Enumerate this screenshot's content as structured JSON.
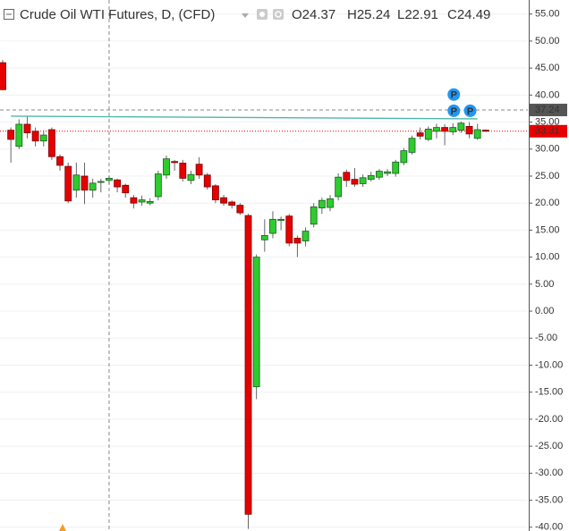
{
  "chart_data": {
    "type": "candlestick",
    "title": "Crude Oil WTI Futures, D, (CFD)",
    "ohlc_legend": [
      {
        "label": "O",
        "value": 24.37
      },
      {
        "label": "H",
        "value": 25.24
      },
      {
        "label": "L",
        "value": 22.91
      },
      {
        "label": "C",
        "value": 24.49
      }
    ],
    "series": {
      "up_color": "#2ecc2e",
      "down_color": "#e60000",
      "open": [
        46,
        33.5,
        30.5,
        34.6,
        33.3,
        31.5,
        33.6,
        28.6,
        26.8,
        22.4,
        25,
        22.4,
        23.9,
        24.2,
        24.3,
        23.3,
        21,
        20.2,
        20,
        21.2,
        25.2,
        27.7,
        27.4,
        24.2,
        27.2,
        25.2,
        23.2,
        21,
        20.2,
        19.6,
        17.7,
        -14,
        13.2,
        14.4,
        16.8,
        17.6,
        13.5,
        13,
        16.1,
        19.1,
        19.2,
        21.2,
        25.7,
        24.4,
        23.6,
        24.4,
        24.8,
        25.5,
        25.5,
        27.5,
        29.4,
        33,
        31.8,
        33.3,
        34,
        33.2,
        33.5,
        34.2,
        32,
        33.5
      ],
      "high": [
        46.5,
        34,
        35.5,
        36,
        34,
        33.5,
        34,
        29,
        27.5,
        27.5,
        27.5,
        24.5,
        24.5,
        25,
        24.5,
        23.6,
        21.5,
        21.4,
        20.9,
        26,
        28.8,
        28,
        28,
        26,
        28.5,
        25.6,
        23.5,
        21.5,
        20.5,
        20,
        18,
        10.5,
        17,
        18.5,
        17.5,
        18,
        14,
        15.5,
        20,
        21,
        21.5,
        25.5,
        26.2,
        26.5,
        25.3,
        25.8,
        26.3,
        26.3,
        28,
        30.2,
        32.5,
        34,
        34.2,
        34.7,
        34.6,
        34.8,
        35.1,
        35,
        34.7,
        33.6
      ],
      "low": [
        41,
        27.5,
        30,
        32,
        30.5,
        30.5,
        28,
        26,
        20,
        21,
        19.8,
        21,
        22,
        23.5,
        22,
        21,
        19,
        19.5,
        19.6,
        20.5,
        24.5,
        26,
        24,
        23.5,
        24.5,
        22.5,
        20,
        19.5,
        19,
        17.8,
        -40.3,
        -16.3,
        11,
        13.5,
        15,
        12,
        10,
        12,
        15.5,
        18,
        18.5,
        20.5,
        23,
        23,
        23,
        24,
        24.3,
        25,
        24.9,
        27,
        29,
        31.8,
        31.5,
        32,
        30.7,
        32.6,
        33,
        32,
        31.7,
        33.2
      ],
      "close": [
        41,
        31.8,
        34.6,
        33,
        31.5,
        32.6,
        28.6,
        27,
        20.4,
        25.2,
        22.4,
        23.7,
        24,
        24.6,
        23,
        21.9,
        20,
        20.6,
        20.3,
        25.4,
        28.2,
        27.5,
        24.6,
        25.3,
        25.2,
        23,
        20.6,
        20,
        19.6,
        18.2,
        -37.6,
        10,
        14,
        17,
        17,
        12.6,
        12.6,
        14.8,
        19.3,
        20.5,
        20.8,
        24.8,
        24.2,
        23.5,
        24.7,
        25.1,
        25.9,
        25.8,
        27.6,
        29.7,
        32,
        32.4,
        33.7,
        34,
        33.3,
        34,
        34.8,
        32.8,
        33.6,
        33.31
      ]
    },
    "ylim": [
      -40.7,
      57.6
    ],
    "yticks": [
      {
        "value": 55,
        "label": "55.00"
      },
      {
        "value": 50,
        "label": "50.00"
      },
      {
        "value": 45,
        "label": "45.00"
      },
      {
        "value": 40,
        "label": "40.00"
      },
      {
        "value": 35,
        "label": "35.00"
      },
      {
        "value": 30,
        "label": "30.00"
      },
      {
        "value": 25,
        "label": "25.00"
      },
      {
        "value": 20,
        "label": "20.00"
      },
      {
        "value": 15,
        "label": "15.00"
      },
      {
        "value": 10,
        "label": "10.00"
      },
      {
        "value": 5,
        "label": "5.00"
      },
      {
        "value": 0,
        "label": "0.00"
      },
      {
        "value": -5,
        "label": "-5.00"
      },
      {
        "value": -10,
        "label": "-10.00"
      },
      {
        "value": -15,
        "label": "-15.00"
      },
      {
        "value": -20,
        "label": "-20.00"
      },
      {
        "value": -25,
        "label": "-25.00"
      },
      {
        "value": -30,
        "label": "-30.00"
      },
      {
        "value": -35,
        "label": "-35.00"
      },
      {
        "value": -40,
        "label": "-40.00"
      }
    ],
    "grid": true,
    "crosshair": {
      "index": 13,
      "value": 37.24,
      "color": "#888888"
    },
    "last_price": {
      "value": 33.31,
      "color": "#e60000"
    },
    "trendline": {
      "from": {
        "index": 1,
        "value": 36.1
      },
      "to": {
        "index": 58,
        "value": 35.6
      },
      "color": "#4db6ac"
    },
    "markers": [
      {
        "index": 55,
        "value": 40.1,
        "label": "P"
      },
      {
        "index": 55,
        "value": 37.1,
        "label": "P"
      },
      {
        "index": 57,
        "value": 37.1,
        "label": "P"
      }
    ],
    "marker_color": "#2196f3"
  }
}
